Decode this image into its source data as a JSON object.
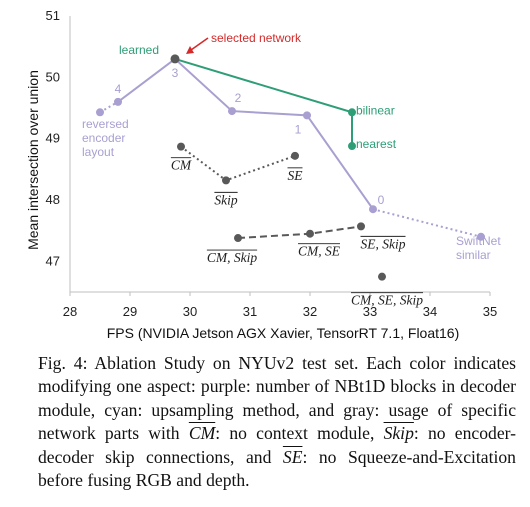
{
  "chart_data": {
    "type": "scatter",
    "xlabel": "FPS (NVIDIA Jetson AGX Xavier, TensorRT 7.1, Float16)",
    "ylabel": "Mean intersection over union",
    "xlim": [
      28,
      35
    ],
    "ylim": [
      46.5,
      51
    ],
    "x_ticks": [
      "28",
      "29",
      "30",
      "31",
      "32",
      "33",
      "34",
      "35"
    ],
    "y_ticks": [
      "47",
      "48",
      "49",
      "50",
      "51"
    ],
    "colors": {
      "purple": "#a99fd1",
      "cyan": "#2e9e76",
      "gray": "#595959",
      "selected": "#d42a2a"
    },
    "series": [
      {
        "color": "purple",
        "points": [
          {
            "x": 28.5,
            "y": 49.43,
            "label": ""
          },
          {
            "x": 28.8,
            "y": 49.6,
            "label": "4"
          },
          {
            "x": 29.75,
            "y": 50.3,
            "label": "3"
          },
          {
            "x": 30.7,
            "y": 49.45,
            "label": "2"
          },
          {
            "x": 31.95,
            "y": 49.38,
            "label": "1"
          },
          {
            "x": 33.05,
            "y": 47.85,
            "label": "0"
          },
          {
            "x": 34.85,
            "y": 47.4,
            "label": ""
          }
        ],
        "annotations": [
          {
            "lines": [
              "reversed",
              "encoder",
              "layout"
            ]
          },
          {
            "lines": [
              "SwiftNet",
              "similar"
            ]
          }
        ]
      },
      {
        "color": "cyan",
        "points": [
          {
            "x": 29.75,
            "y": 50.3,
            "label": "learned"
          },
          {
            "x": 32.7,
            "y": 49.43,
            "label": "bilinear"
          },
          {
            "x": 32.7,
            "y": 48.88,
            "label": "nearest"
          }
        ]
      },
      {
        "color": "gray",
        "groups": [
          {
            "points": [
              {
                "x": 29.85,
                "y": 48.87,
                "label": "CM"
              },
              {
                "x": 30.6,
                "y": 48.32,
                "label": "Skip"
              },
              {
                "x": 31.75,
                "y": 48.72,
                "label": "SE"
              }
            ]
          },
          {
            "points": [
              {
                "x": 30.8,
                "y": 47.38,
                "label": "CM, Skip"
              },
              {
                "x": 32.0,
                "y": 47.45,
                "label": "CM, SE"
              },
              {
                "x": 32.85,
                "y": 47.57,
                "label": "SE, Skip"
              }
            ]
          },
          {
            "points": [
              {
                "x": 33.2,
                "y": 46.75,
                "label": "CM, SE, Skip"
              }
            ]
          }
        ]
      }
    ],
    "annotation": {
      "text": "selected network",
      "target": {
        "x": 29.75,
        "y": 50.3
      }
    },
    "grid": false
  },
  "caption": {
    "lead": "Fig. 4: Ablation Study on NYUv2 test set. Each color indicates modifying one aspect: purple: number of NBt1D blocks in decoder module, cyan: upsampling method, and gray: usage of specific network parts with",
    "cm_term": "CM",
    "cm_desc": ": no context module,",
    "skip_term": "Skip",
    "skip_desc": ": no encoder-decoder skip connections, and",
    "se_term": "SE",
    "se_desc": ": no Squeeze-and-Excitation before fusing RGB and depth."
  }
}
